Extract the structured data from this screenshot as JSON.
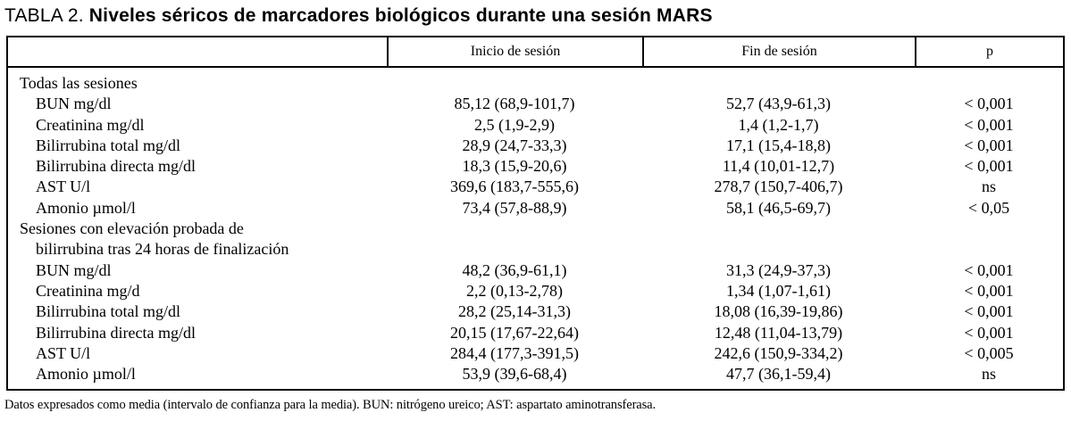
{
  "title": {
    "prefix": "TABLA 2. ",
    "main": "Niveles séricos de marcadores biológicos durante una sesión MARS"
  },
  "table": {
    "columns": [
      "",
      "Inicio de sesión",
      "Fin de sesión",
      "p"
    ],
    "rows": [
      {
        "label": "Todas las sesiones",
        "indent": 0,
        "inicio": "",
        "fin": "",
        "p": ""
      },
      {
        "label": "BUN mg/dl",
        "indent": 1,
        "inicio": "85,12 (68,9-101,7)",
        "fin": "52,7 (43,9-61,3)",
        "p": "< 0,001"
      },
      {
        "label": "Creatinina mg/dl",
        "indent": 1,
        "inicio": "2,5 (1,9-2,9)",
        "fin": "1,4 (1,2-1,7)",
        "p": "< 0,001"
      },
      {
        "label": "Bilirrubina total mg/dl",
        "indent": 1,
        "inicio": "28,9 (24,7-33,3)",
        "fin": "17,1 (15,4-18,8)",
        "p": "< 0,001"
      },
      {
        "label": "Bilirrubina directa mg/dl",
        "indent": 1,
        "inicio": "18,3 (15,9-20,6)",
        "fin": "11,4 (10,01-12,7)",
        "p": "< 0,001"
      },
      {
        "label": "AST U/l",
        "indent": 1,
        "inicio": "369,6 (183,7-555,6)",
        "fin": "278,7 (150,7-406,7)",
        "p": "ns"
      },
      {
        "label": "Amonio µmol/l",
        "indent": 1,
        "inicio": "73,4 (57,8-88,9)",
        "fin": "58,1 (46,5-69,7)",
        "p": "< 0,05"
      },
      {
        "label": "Sesiones con elevación probada de",
        "indent": 0,
        "inicio": "",
        "fin": "",
        "p": ""
      },
      {
        "label": "bilirrubina tras 24 horas de finalización",
        "indent": 1,
        "inicio": "",
        "fin": "",
        "p": ""
      },
      {
        "label": "BUN mg/dl",
        "indent": 1,
        "inicio": "48,2 (36,9-61,1)",
        "fin": "31,3 (24,9-37,3)",
        "p": "< 0,001"
      },
      {
        "label": "Creatinina mg/d",
        "indent": 1,
        "inicio": "2,2 (0,13-2,78)",
        "fin": "1,34 (1,07-1,61)",
        "p": "< 0,001"
      },
      {
        "label": "Bilirrubina total mg/dl",
        "indent": 1,
        "inicio": "28,2 (25,14-31,3)",
        "fin": "18,08 (16,39-19,86)",
        "p": "< 0,001"
      },
      {
        "label": "Bilirrubina directa mg/dl",
        "indent": 1,
        "inicio": "20,15 (17,67-22,64)",
        "fin": "12,48 (11,04-13,79)",
        "p": "< 0,001"
      },
      {
        "label": "AST U/l",
        "indent": 1,
        "inicio": "284,4 (177,3-391,5)",
        "fin": "242,6 (150,9-334,2)",
        "p": "< 0,005"
      },
      {
        "label": "Amonio µmol/l",
        "indent": 1,
        "inicio": "53,9 (39,6-68,4)",
        "fin": "47,7 (36,1-59,4)",
        "p": "ns"
      }
    ]
  },
  "footnote": "Datos expresados como media (intervalo de confianza para la media). BUN: nitrógeno ureico; AST: aspartato aminotransferasa."
}
